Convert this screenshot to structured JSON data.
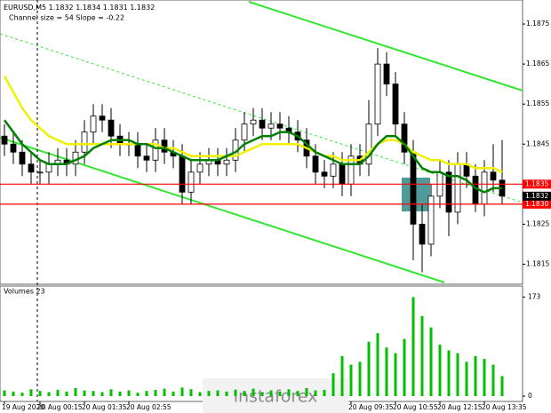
{
  "chart_data": {
    "type": "candlestick",
    "symbol": "EURUSD,M5",
    "header_ohlc": [
      1.1832,
      1.1834,
      1.1831,
      1.1832
    ],
    "subtitle": "Channel size = 54 Slope = -0.22",
    "volume_title": "Volumes 23",
    "watermark": "instaforex",
    "categories": [
      "19 Aug 2020",
      null,
      null,
      null,
      "20 Aug 00:15",
      null,
      null,
      null,
      null,
      "20 Aug 01:35",
      null,
      null,
      null,
      null,
      "20 Aug 02:55",
      null,
      null,
      null,
      null,
      null,
      null,
      null,
      null,
      null,
      null,
      null,
      null,
      null,
      null,
      null,
      null,
      null,
      null,
      null,
      null,
      null,
      null,
      null,
      null,
      "20 Aug 09:35",
      null,
      null,
      null,
      null,
      "20 Aug 10:55",
      null,
      null,
      null,
      null,
      "20 Aug 12:15",
      null,
      null,
      null,
      null,
      "20 Aug 13:35",
      null,
      null
    ],
    "open": [
      1.1847,
      1.1845,
      1.1843,
      1.184,
      1.1838,
      1.1838,
      1.184,
      1.1841,
      1.184,
      1.1843,
      1.1848,
      1.1852,
      1.1851,
      1.1847,
      1.1845,
      1.1845,
      1.1842,
      1.1841,
      1.1846,
      1.1843,
      1.1842,
      1.1833,
      1.1838,
      1.184,
      1.1841,
      1.184,
      1.1841,
      1.1846,
      1.185,
      1.1851,
      1.1849,
      1.185,
      1.1849,
      1.1848,
      1.1846,
      1.1842,
      1.1838,
      1.1837,
      1.184,
      1.1835,
      1.1842,
      1.184,
      1.185,
      1.1865,
      1.186,
      1.185,
      1.1843,
      1.1825,
      1.182,
      1.1832,
      1.1838,
      1.1828,
      1.184,
      1.1837,
      1.183,
      1.1838,
      1.1836
    ],
    "high": [
      1.185,
      1.1848,
      1.1846,
      1.1843,
      1.1841,
      1.1843,
      1.1844,
      1.1844,
      1.1846,
      1.1851,
      1.1855,
      1.1855,
      1.1854,
      1.185,
      1.1848,
      1.1848,
      1.1845,
      1.1849,
      1.1849,
      1.1846,
      1.1845,
      1.1841,
      1.1843,
      1.1844,
      1.1844,
      1.1844,
      1.1849,
      1.1853,
      1.1854,
      1.1854,
      1.1853,
      1.1853,
      1.1852,
      1.1851,
      1.1849,
      1.1845,
      1.1841,
      1.1843,
      1.1843,
      1.1845,
      1.1845,
      1.1856,
      1.1869,
      1.1868,
      1.1863,
      1.1853,
      1.1846,
      1.183,
      1.1835,
      1.1841,
      1.1841,
      1.1843,
      1.1843,
      1.184,
      1.1841,
      1.1845,
      1.1846
    ],
    "low": [
      1.1842,
      1.184,
      1.1837,
      1.1835,
      1.1835,
      1.1835,
      1.1837,
      1.1837,
      1.1837,
      1.184,
      1.1845,
      1.1848,
      1.1844,
      1.1842,
      1.1842,
      1.1839,
      1.1838,
      1.1838,
      1.184,
      1.1839,
      1.183,
      1.183,
      1.1835,
      1.1837,
      1.1837,
      1.1837,
      1.1838,
      1.1843,
      1.1847,
      1.1846,
      1.1846,
      1.1846,
      1.1845,
      1.1843,
      1.1839,
      1.1835,
      1.1834,
      1.1834,
      1.1832,
      1.1832,
      1.1837,
      1.1837,
      1.1847,
      1.1857,
      1.1847,
      1.184,
      1.1816,
      1.1813,
      1.1817,
      1.1829,
      1.1822,
      1.1825,
      1.1834,
      1.1828,
      1.1827,
      1.1833,
      1.183
    ],
    "close": [
      1.1845,
      1.1843,
      1.184,
      1.1838,
      1.1838,
      1.184,
      1.1841,
      1.184,
      1.1843,
      1.1848,
      1.1852,
      1.1851,
      1.1847,
      1.1845,
      1.1845,
      1.1842,
      1.1841,
      1.1846,
      1.1843,
      1.1842,
      1.1833,
      1.1838,
      1.184,
      1.1841,
      1.184,
      1.1841,
      1.1846,
      1.185,
      1.1851,
      1.1849,
      1.185,
      1.1849,
      1.1848,
      1.1846,
      1.1842,
      1.1838,
      1.1837,
      1.184,
      1.1835,
      1.1842,
      1.184,
      1.185,
      1.1865,
      1.186,
      1.185,
      1.1843,
      1.1825,
      1.182,
      1.1832,
      1.1838,
      1.1828,
      1.184,
      1.1837,
      1.183,
      1.1838,
      1.1836,
      1.1832
    ],
    "series": [
      {
        "color": "#f0f000",
        "values": [
          1.1862,
          1.1858,
          1.1854,
          1.1851,
          1.1849,
          1.1847,
          1.1846,
          1.1845,
          1.1845,
          1.1845,
          1.1845,
          1.1845,
          1.1845,
          1.1845,
          1.1845,
          1.1845,
          1.1845,
          1.1845,
          1.1844,
          1.1844,
          1.1843,
          1.1842,
          1.1842,
          1.1842,
          1.1842,
          1.1842,
          1.1842,
          1.1843,
          1.1844,
          1.1845,
          1.1845,
          1.1845,
          1.1845,
          1.1845,
          1.1844,
          1.1843,
          1.1842,
          1.1842,
          1.1841,
          1.1841,
          1.1841,
          1.1843,
          1.1845,
          1.1846,
          1.1846,
          1.1845,
          1.1843,
          1.1842,
          1.1841,
          1.1841,
          1.184,
          1.184,
          1.184,
          1.1839,
          1.1839,
          1.1839,
          1.1838
        ]
      },
      {
        "color": "#008000",
        "values": [
          1.1851,
          1.1848,
          1.1845,
          1.1843,
          1.1841,
          1.184,
          1.184,
          1.184,
          1.1841,
          1.1842,
          1.1844,
          1.1845,
          1.1846,
          1.1846,
          1.1846,
          1.1845,
          1.1845,
          1.1844,
          1.1844,
          1.1843,
          1.1842,
          1.1841,
          1.1841,
          1.1841,
          1.1841,
          1.1842,
          1.1843,
          1.1845,
          1.1846,
          1.1847,
          1.1847,
          1.1848,
          1.1848,
          1.1847,
          1.1845,
          1.1843,
          1.1842,
          1.1841,
          1.184,
          1.184,
          1.184,
          1.1842,
          1.1845,
          1.1847,
          1.1847,
          1.1845,
          1.1842,
          1.1839,
          1.1838,
          1.1838,
          1.1837,
          1.1837,
          1.1836,
          1.1834,
          1.1833,
          1.1834,
          1.1834
        ]
      }
    ],
    "volumes": [
      10,
      8,
      6,
      12,
      9,
      7,
      11,
      8,
      14,
      10,
      9,
      7,
      12,
      8,
      10,
      6,
      9,
      11,
      13,
      8,
      15,
      12,
      7,
      9,
      10,
      8,
      11,
      9,
      13,
      7,
      10,
      8,
      12,
      9,
      14,
      10,
      11,
      40,
      70,
      55,
      60,
      95,
      110,
      85,
      75,
      100,
      173,
      140,
      120,
      90,
      80,
      75,
      60,
      70,
      65,
      55,
      35
    ],
    "volume_color": "#00c000",
    "ylim": [
      1.181,
      1.1881
    ],
    "yticks": [
      1.1815,
      1.1825,
      1.1835,
      1.1845,
      1.1855,
      1.1865,
      1.1875
    ],
    "volume_ylim": [
      0,
      180
    ],
    "volume_yticks": [
      0,
      173
    ],
    "levels": [
      {
        "value": 1.1835,
        "label": "1.1835"
      },
      {
        "value": 1.183,
        "label": "1.1830"
      }
    ],
    "level_color": "#ff0000",
    "last_price": 1.1832
  }
}
